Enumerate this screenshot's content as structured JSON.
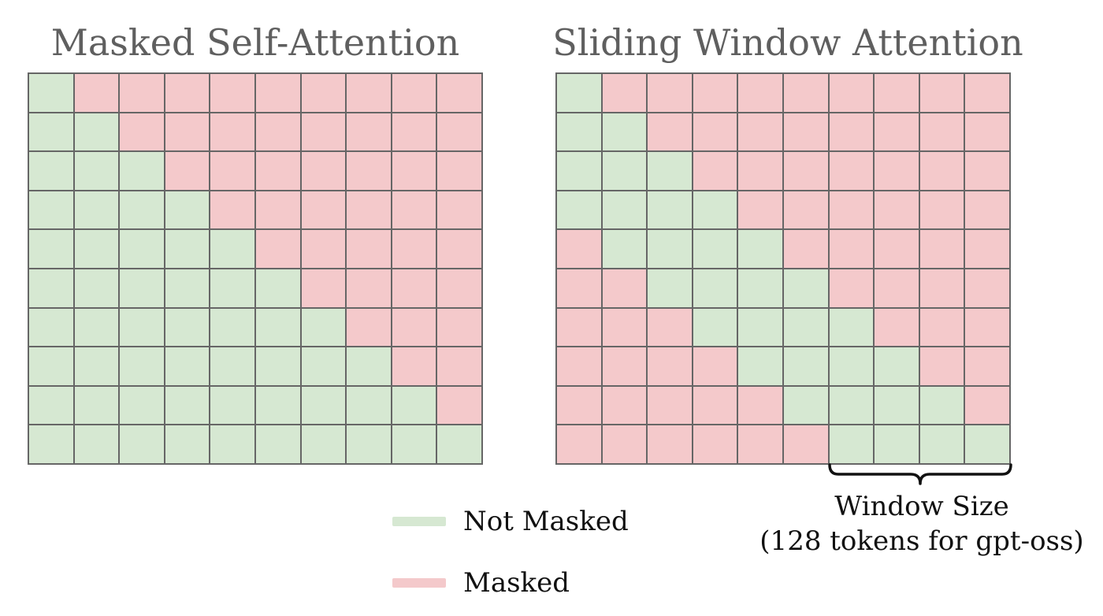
{
  "titles": {
    "left": "Masked Self-Attention",
    "right": "Sliding Window Attention"
  },
  "colors": {
    "not_masked": "#d6e8d2",
    "masked": "#f4c9cb",
    "grid_line": "#666666",
    "title_text": "#5f5f5f"
  },
  "grid_size": 10,
  "matrices": {
    "masked_self_attention": {
      "rule": "causal",
      "rows": [
        "GRRRRRRRRR",
        "GGRRRRRRRR",
        "GGGRRRRRRR",
        "GGGGRRRRRR",
        "GGGGGRRRRR",
        "GGGGGGRRRR",
        "GGGGGGGRRR",
        "GGGGGGGGRR",
        "GGGGGGGGGR",
        "GGGGGGGGGG"
      ]
    },
    "sliding_window_attention": {
      "rule": "causal-window",
      "window": 4,
      "rows": [
        "GRRRRRRRRR",
        "GGRRRRRRRR",
        "GGGRRRRRRR",
        "GGGGRRRRRR",
        "RGGGGRRRRR",
        "RRGGGGRRRR",
        "RRRGGGGRRR",
        "RRRRGGGGRR",
        "RRRRRGGGGR",
        "RRRRRRGGGG"
      ]
    }
  },
  "annotation": {
    "line1": "Window Size",
    "line2": "(128 tokens for gpt-oss)"
  },
  "legend": {
    "not_masked_label": "Not Masked",
    "masked_label": "Masked"
  }
}
